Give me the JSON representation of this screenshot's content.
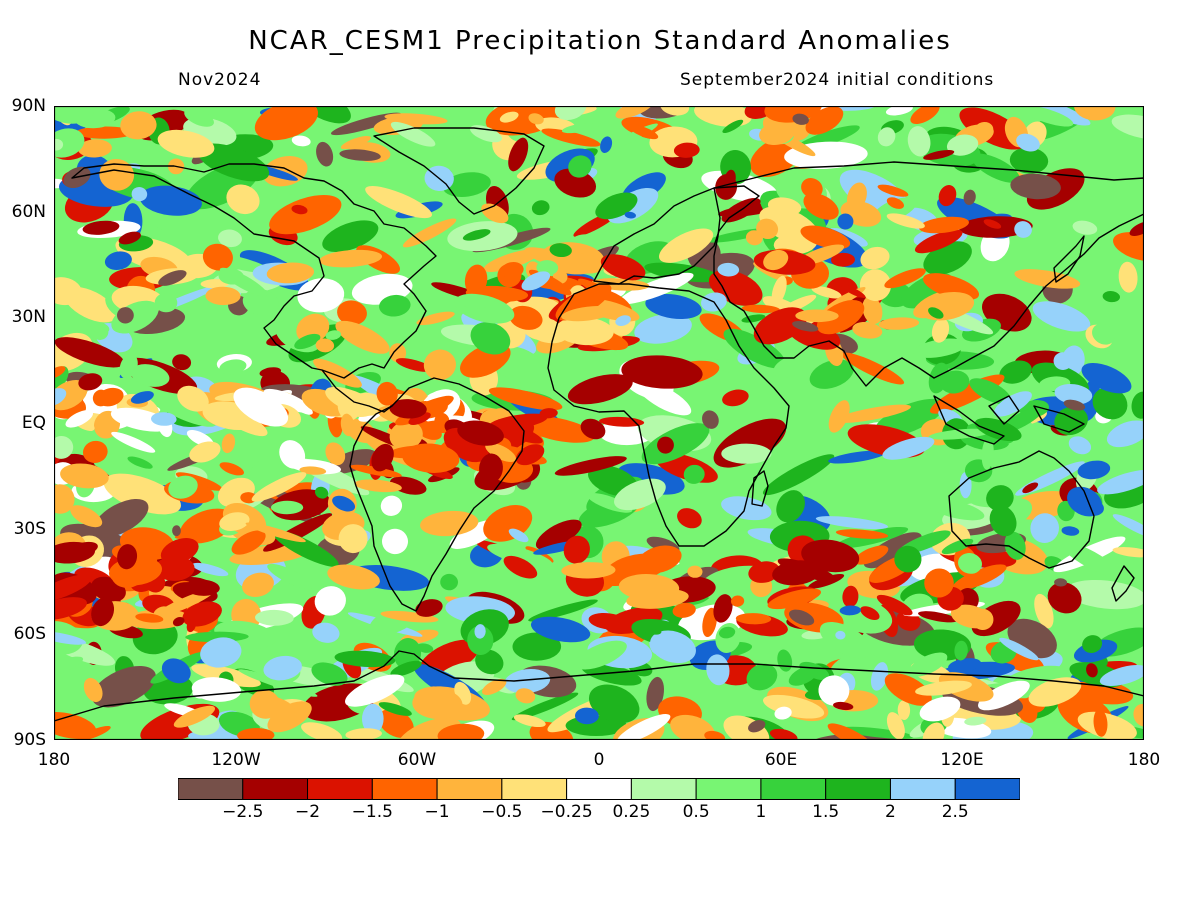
{
  "header": {
    "title": "NCAR_CESM1 Precipitation Standard Anomalies",
    "target_month": "Nov2024",
    "initial_conditions": "September2024 initial conditions"
  },
  "axes": {
    "latitude_labels": [
      "90N",
      "60N",
      "30N",
      "EQ",
      "30S",
      "60S",
      "90S"
    ],
    "longitude_labels": [
      "180",
      "120W",
      "60W",
      "0",
      "60E",
      "120E",
      "180"
    ]
  },
  "colorbar": {
    "tick_labels": [
      "−2.5",
      "−2",
      "−1.5",
      "−1",
      "−0.5",
      "−0.25",
      "0.25",
      "0.5",
      "1",
      "1.5",
      "2",
      "2.5"
    ],
    "colors": [
      "#765049",
      "#a50000",
      "#db1200",
      "#ff6400",
      "#ffb43c",
      "#ffe178",
      "#ffffff",
      "#b4faaa",
      "#78f573",
      "#37d23c",
      "#1eb41e",
      "#96d2fa",
      "#1464d2"
    ]
  },
  "map": {
    "projection": "cylindrical equidistant",
    "lon_range": [
      -180,
      180
    ],
    "lat_range": [
      -90,
      90
    ],
    "land_outline_color": "#000000"
  }
}
